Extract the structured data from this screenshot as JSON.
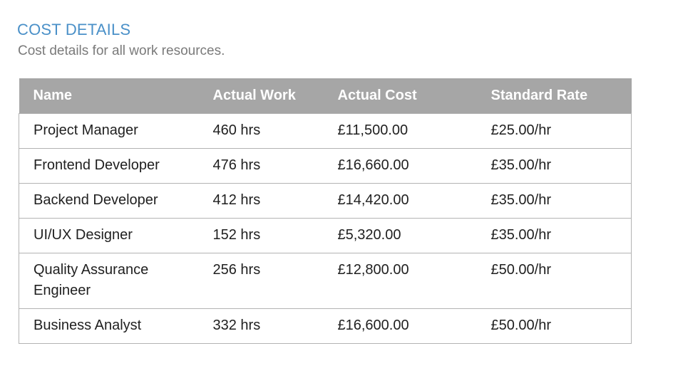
{
  "report": {
    "title": "COST DETAILS",
    "subtitle": "Cost details for all work resources."
  },
  "table": {
    "headers": [
      "Name",
      "Actual Work",
      "Actual Cost",
      "Standard Rate"
    ],
    "rows": [
      [
        "Project Manager",
        "460 hrs",
        "£11,500.00",
        "£25.00/hr"
      ],
      [
        "Frontend Developer",
        "476 hrs",
        "£16,660.00",
        "£35.00/hr"
      ],
      [
        "Backend Developer",
        "412 hrs",
        "£14,420.00",
        "£35.00/hr"
      ],
      [
        "UI/UX Designer",
        "152 hrs",
        "£5,320.00",
        "£35.00/hr"
      ],
      [
        "Quality Assurance Engineer",
        "256 hrs",
        "£12,800.00",
        "£50.00/hr"
      ],
      [
        "Business Analyst",
        "332 hrs",
        "£16,600.00",
        "£50.00/hr"
      ]
    ]
  },
  "colors": {
    "title": "#4a90c8",
    "subtitle": "#7a7a7a",
    "header_background": "#a6a6a6",
    "header_text": "#ffffff",
    "border": "#b3b3b3",
    "body_text": "#1f1f1f"
  }
}
